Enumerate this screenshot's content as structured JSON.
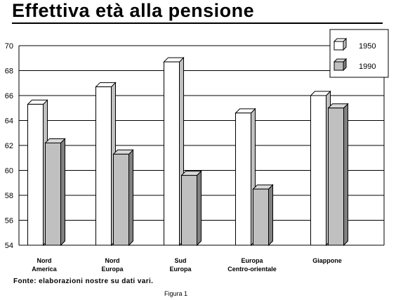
{
  "title": "Effettiva età alla pensione",
  "source": "Fonte: elaborazioni nostre su dati vari.",
  "caption": "Figura 1",
  "chart_data": {
    "type": "bar",
    "title": "Effettiva età alla pensione",
    "categories": [
      [
        "Nord",
        "America"
      ],
      [
        "Nord",
        "Europa"
      ],
      [
        "Sud",
        "Europa"
      ],
      [
        "Europa",
        "Centro-orientale"
      ],
      [
        "Giappone"
      ]
    ],
    "series": [
      {
        "name": "1950",
        "values": [
          65.3,
          66.7,
          68.7,
          64.6,
          66.0
        ],
        "color": "#ffffff"
      },
      {
        "name": "1990",
        "values": [
          62.2,
          61.3,
          59.6,
          58.5,
          65.0
        ],
        "color": "#c0c0c0"
      }
    ],
    "ylim": [
      54,
      70
    ],
    "yticks": [
      54,
      56,
      58,
      60,
      62,
      64,
      66,
      68,
      70
    ],
    "grid": true,
    "legend_position": "top-right",
    "style": "3d"
  }
}
